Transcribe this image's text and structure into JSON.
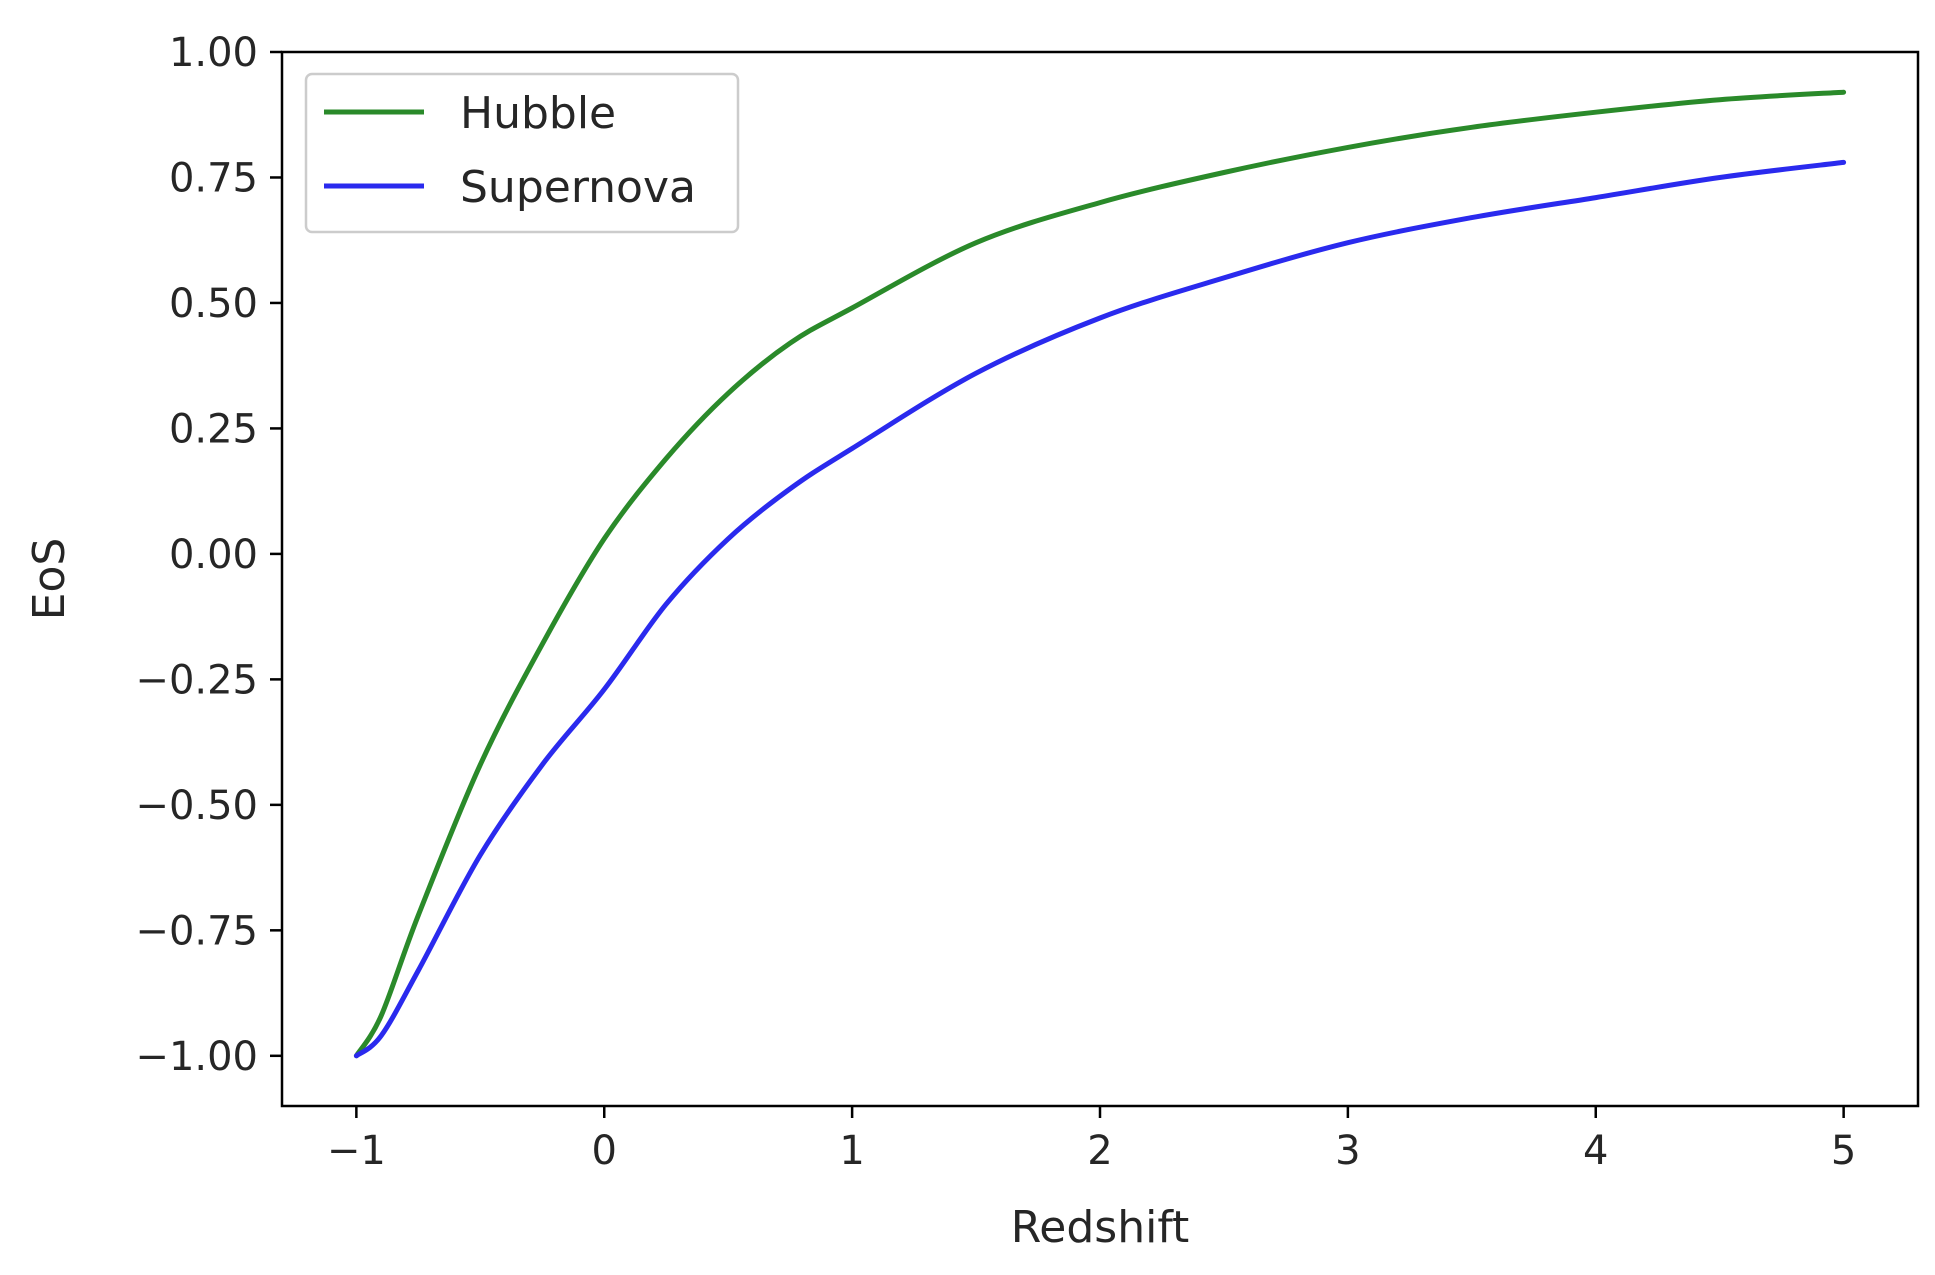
{
  "chart_data": {
    "type": "line",
    "title": "",
    "xlabel": "Redshift",
    "ylabel": "EoS",
    "xlim": [
      -1.3,
      5.3
    ],
    "ylim": [
      -1.1,
      1.0
    ],
    "xticks": [
      -1,
      0,
      1,
      2,
      3,
      4,
      5
    ],
    "xtick_labels": [
      "−1",
      "0",
      "1",
      "2",
      "3",
      "4",
      "5"
    ],
    "yticks": [
      -1.0,
      -0.75,
      -0.5,
      -0.25,
      0.0,
      0.25,
      0.5,
      0.75,
      1.0
    ],
    "ytick_labels": [
      "−1.00",
      "−0.75",
      "−0.50",
      "−0.25",
      "0.00",
      "0.25",
      "0.50",
      "0.75",
      "1.00"
    ],
    "grid": false,
    "legend_position": "top-left",
    "series": [
      {
        "name": "Hubble",
        "color": "#2a8a2a",
        "x": [
          -1.0,
          -0.9,
          -0.75,
          -0.5,
          -0.25,
          0.0,
          0.25,
          0.5,
          0.75,
          1.0,
          1.5,
          2.0,
          2.5,
          3.0,
          3.5,
          4.0,
          4.5,
          5.0
        ],
        "y": [
          -1.0,
          -0.92,
          -0.72,
          -0.42,
          -0.18,
          0.03,
          0.19,
          0.32,
          0.42,
          0.49,
          0.62,
          0.7,
          0.76,
          0.81,
          0.85,
          0.88,
          0.905,
          0.92
        ]
      },
      {
        "name": "Supernova",
        "color": "#2a2aee",
        "x": [
          -1.0,
          -0.9,
          -0.75,
          -0.5,
          -0.25,
          0.0,
          0.25,
          0.5,
          0.75,
          1.0,
          1.5,
          2.0,
          2.5,
          3.0,
          3.5,
          4.0,
          4.5,
          5.0
        ],
        "y": [
          -1.0,
          -0.96,
          -0.83,
          -0.6,
          -0.42,
          -0.27,
          -0.1,
          0.03,
          0.13,
          0.21,
          0.36,
          0.47,
          0.55,
          0.62,
          0.67,
          0.71,
          0.75,
          0.78
        ]
      }
    ]
  }
}
